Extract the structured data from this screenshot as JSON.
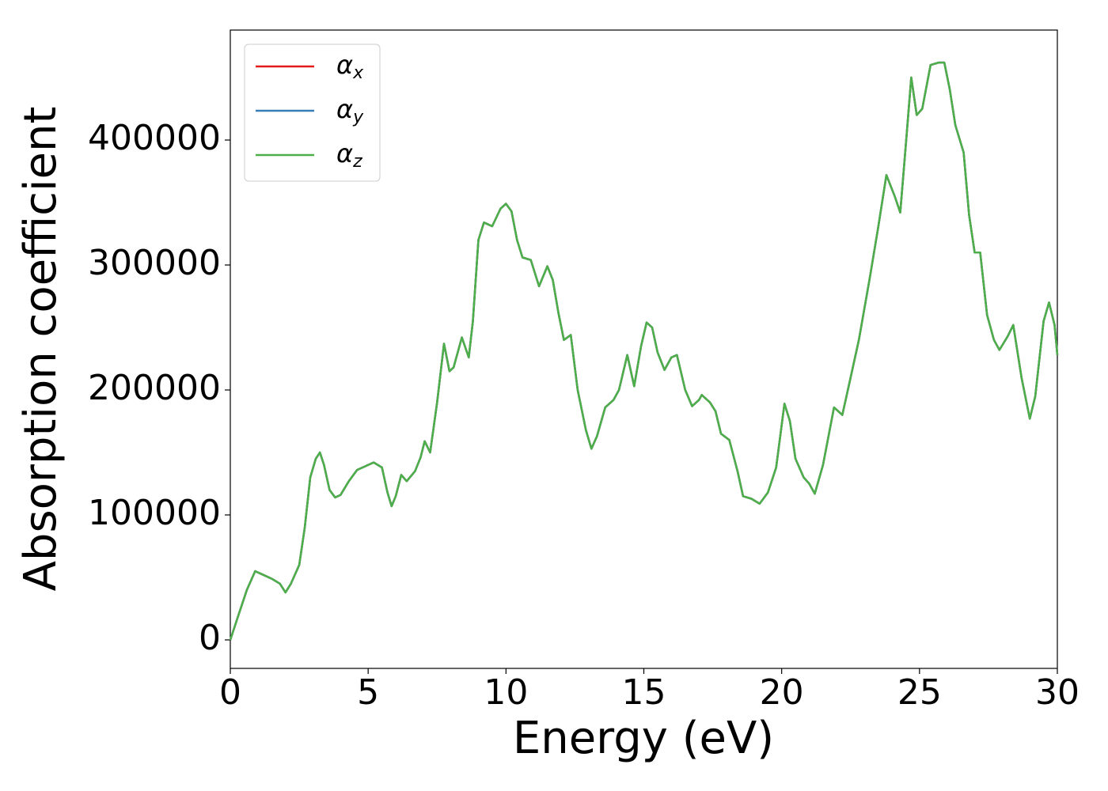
{
  "chart_data": {
    "type": "line",
    "x_label": "Energy (eV)",
    "y_label": "Absorption coefficient",
    "x": [
      0,
      0.3,
      0.6,
      0.9,
      1.2,
      1.5,
      1.8,
      2.0,
      2.2,
      2.5,
      2.7,
      2.9,
      3.1,
      3.25,
      3.4,
      3.6,
      3.8,
      4.0,
      4.3,
      4.6,
      4.9,
      5.2,
      5.5,
      5.7,
      5.85,
      6.0,
      6.2,
      6.4,
      6.7,
      6.9,
      7.05,
      7.25,
      7.5,
      7.75,
      7.95,
      8.1,
      8.4,
      8.65,
      8.8,
      9.0,
      9.2,
      9.5,
      9.8,
      10.0,
      10.2,
      10.4,
      10.6,
      10.9,
      11.2,
      11.5,
      11.7,
      11.9,
      12.1,
      12.35,
      12.6,
      12.9,
      13.1,
      13.3,
      13.6,
      13.9,
      14.1,
      14.4,
      14.65,
      14.9,
      15.1,
      15.3,
      15.5,
      15.75,
      16.0,
      16.2,
      16.5,
      16.75,
      17.0,
      17.1,
      17.4,
      17.6,
      17.8,
      18.1,
      18.4,
      18.6,
      18.9,
      19.2,
      19.5,
      19.8,
      20.1,
      20.3,
      20.5,
      20.8,
      21.0,
      21.2,
      21.5,
      21.9,
      22.2,
      22.5,
      22.8,
      23.2,
      23.5,
      23.8,
      24.1,
      24.3,
      24.5,
      24.7,
      24.9,
      25.1,
      25.4,
      25.7,
      25.9,
      26.1,
      26.3,
      26.6,
      26.8,
      27.0,
      27.2,
      27.45,
      27.7,
      27.9,
      28.2,
      28.4,
      28.7,
      29.0,
      29.2,
      29.5,
      29.7,
      29.9,
      30.0
    ],
    "series": [
      {
        "name": "αx",
        "color": "#e41a1c",
        "values": [
          0,
          20000,
          40000,
          55000,
          52000,
          49000,
          45000,
          38000,
          45000,
          60000,
          90000,
          130000,
          145000,
          150000,
          140000,
          120000,
          114000,
          116000,
          127000,
          136000,
          139000,
          142000,
          138000,
          118000,
          107000,
          115000,
          132000,
          127000,
          135000,
          146000,
          159000,
          150000,
          190000,
          237000,
          215000,
          218000,
          242000,
          226000,
          255000,
          320000,
          334000,
          331000,
          345000,
          349000,
          343000,
          320000,
          306000,
          304000,
          283000,
          299000,
          288000,
          262000,
          240000,
          244000,
          200000,
          168000,
          153000,
          163000,
          186000,
          192000,
          200000,
          228000,
          203000,
          235000,
          254000,
          250000,
          230000,
          216000,
          226000,
          228000,
          200000,
          187000,
          192000,
          196000,
          190000,
          183000,
          165000,
          160000,
          135000,
          115000,
          113000,
          109000,
          118000,
          138000,
          189000,
          175000,
          145000,
          130000,
          125000,
          117000,
          140000,
          186000,
          180000,
          210000,
          240000,
          290000,
          330000,
          372000,
          355000,
          342000,
          395000,
          450000,
          420000,
          425000,
          460000,
          462000,
          462000,
          440000,
          412000,
          390000,
          340000,
          310000,
          310000,
          260000,
          240000,
          232000,
          243000,
          252000,
          210000,
          177000,
          195000,
          255000,
          270000,
          252000,
          228000
        ]
      },
      {
        "name": "αy",
        "color": "#377eb8",
        "values": [
          0,
          20000,
          40000,
          55000,
          52000,
          49000,
          45000,
          38000,
          45000,
          60000,
          90000,
          130000,
          145000,
          150000,
          140000,
          120000,
          114000,
          116000,
          127000,
          136000,
          139000,
          142000,
          138000,
          118000,
          107000,
          115000,
          132000,
          127000,
          135000,
          146000,
          159000,
          150000,
          190000,
          237000,
          215000,
          218000,
          242000,
          226000,
          255000,
          320000,
          334000,
          331000,
          345000,
          349000,
          343000,
          320000,
          306000,
          304000,
          283000,
          299000,
          288000,
          262000,
          240000,
          244000,
          200000,
          168000,
          153000,
          163000,
          186000,
          192000,
          200000,
          228000,
          203000,
          235000,
          254000,
          250000,
          230000,
          216000,
          226000,
          228000,
          200000,
          187000,
          192000,
          196000,
          190000,
          183000,
          165000,
          160000,
          135000,
          115000,
          113000,
          109000,
          118000,
          138000,
          189000,
          175000,
          145000,
          130000,
          125000,
          117000,
          140000,
          186000,
          180000,
          210000,
          240000,
          290000,
          330000,
          372000,
          355000,
          342000,
          395000,
          450000,
          420000,
          425000,
          460000,
          462000,
          462000,
          440000,
          412000,
          390000,
          340000,
          310000,
          310000,
          260000,
          240000,
          232000,
          243000,
          252000,
          210000,
          177000,
          195000,
          255000,
          270000,
          252000,
          228000
        ]
      },
      {
        "name": "αz",
        "color": "#4daf4a",
        "values": [
          0,
          20000,
          40000,
          55000,
          52000,
          49000,
          45000,
          38000,
          45000,
          60000,
          90000,
          130000,
          145000,
          150000,
          140000,
          120000,
          114000,
          116000,
          127000,
          136000,
          139000,
          142000,
          138000,
          118000,
          107000,
          115000,
          132000,
          127000,
          135000,
          146000,
          159000,
          150000,
          190000,
          237000,
          215000,
          218000,
          242000,
          226000,
          255000,
          320000,
          334000,
          331000,
          345000,
          349000,
          343000,
          320000,
          306000,
          304000,
          283000,
          299000,
          288000,
          262000,
          240000,
          244000,
          200000,
          168000,
          153000,
          163000,
          186000,
          192000,
          200000,
          228000,
          203000,
          235000,
          254000,
          250000,
          230000,
          216000,
          226000,
          228000,
          200000,
          187000,
          192000,
          196000,
          190000,
          183000,
          165000,
          160000,
          135000,
          115000,
          113000,
          109000,
          118000,
          138000,
          189000,
          175000,
          145000,
          130000,
          125000,
          117000,
          140000,
          186000,
          180000,
          210000,
          240000,
          290000,
          330000,
          372000,
          355000,
          342000,
          395000,
          450000,
          420000,
          425000,
          460000,
          462000,
          462000,
          440000,
          412000,
          390000,
          340000,
          310000,
          310000,
          260000,
          240000,
          232000,
          243000,
          252000,
          210000,
          177000,
          195000,
          255000,
          270000,
          252000,
          228000
        ]
      }
    ],
    "xlim": [
      0,
      30
    ],
    "xticks": [
      0,
      5,
      10,
      15,
      20,
      25,
      30
    ],
    "ylim": [
      -22800,
      488000
    ],
    "yticks": [
      0,
      100000,
      200000,
      300000,
      400000
    ],
    "grid": false,
    "legend": "upper left"
  }
}
